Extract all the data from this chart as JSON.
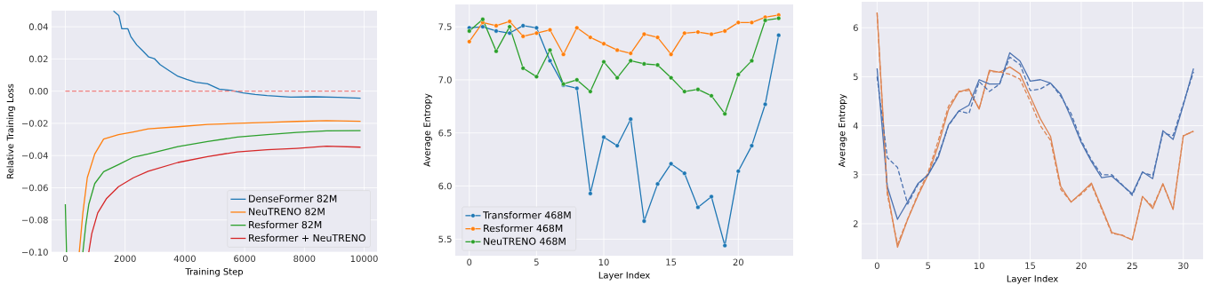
{
  "chart_data": [
    {
      "type": "line",
      "xlabel": "Training Step",
      "ylabel": "Relative Training Loss",
      "xlim": [
        -460,
        10430
      ],
      "ylim": [
        -0.1,
        0.05
      ],
      "xticks": [
        0,
        2000,
        4000,
        6000,
        8000,
        10000
      ],
      "yticks": [
        {
          "value": -0.1,
          "label": "−0.10"
        },
        {
          "value": -0.08,
          "label": "−0.08"
        },
        {
          "value": -0.06,
          "label": "−0.06"
        },
        {
          "value": -0.04,
          "label": "−0.04"
        },
        {
          "value": -0.02,
          "label": "−0.02"
        },
        {
          "value": 0,
          "label": "0.00"
        },
        {
          "value": 0.02,
          "label": "0.02"
        },
        {
          "value": 0.04,
          "label": "0.04"
        }
      ],
      "grid": true,
      "legend": "bottom right",
      "ref_lines": [
        {
          "axis": "y",
          "value": 0,
          "color": "#f08080",
          "line_style": "dashed"
        }
      ],
      "series": [
        {
          "name": "DenseFormer 82M",
          "color": "#1f77b4",
          "x": [
            1610,
            1790,
            1890,
            2090,
            2190,
            2390,
            2590,
            2790,
            2980,
            3170,
            3470,
            3770,
            4060,
            4360,
            4760,
            5150,
            5560,
            5950,
            6350,
            6750,
            7540,
            8340,
            9130,
            9880
          ],
          "values": [
            0.0498,
            0.047,
            0.0388,
            0.0388,
            0.034,
            0.0287,
            0.025,
            0.0212,
            0.0202,
            0.0165,
            0.0128,
            0.0092,
            0.0073,
            0.0055,
            0.0046,
            0.0013,
            0.0004,
            -0.0011,
            -0.002,
            -0.0027,
            -0.0037,
            -0.0035,
            -0.0038,
            -0.0044
          ]
        },
        {
          "name": "NeuTRENO 82M",
          "color": "#ff7f0e",
          "x": [
            467,
            587,
            736,
            985,
            1282,
            1780,
            2276,
            2773,
            3767,
            4761,
            5756,
            6750,
            7744,
            8738,
            9880
          ],
          "values": [
            -0.1,
            -0.0757,
            -0.0537,
            -0.039,
            -0.0298,
            -0.027,
            -0.0253,
            -0.0234,
            -0.0221,
            -0.0207,
            -0.02,
            -0.0194,
            -0.0188,
            -0.0183,
            -0.0187
          ]
        },
        {
          "name": "Resformer 82M",
          "color": "#2ca02c",
          "x": [
            0,
            40,
            300,
            587,
            686,
            786,
            985,
            1282,
            1780,
            2276,
            2773,
            3767,
            4761,
            5756,
            6750,
            7744,
            8738,
            9880
          ],
          "values": [
            -0.0702,
            -0.1,
            null,
            -0.1,
            -0.083,
            -0.0702,
            -0.0574,
            -0.05,
            -0.0456,
            -0.041,
            -0.039,
            -0.0344,
            -0.0313,
            -0.0285,
            -0.027,
            -0.0256,
            -0.0247,
            -0.0245
          ]
        },
        {
          "name": "Resformer + NeuTRENO",
          "color": "#d62728",
          "x": [
            785,
            885,
            1083,
            1382,
            1780,
            2276,
            2773,
            3767,
            4761,
            5756,
            6750,
            7744,
            8738,
            9880
          ],
          "values": [
            -0.1,
            -0.0885,
            -0.0757,
            -0.0666,
            -0.0593,
            -0.0538,
            -0.0498,
            -0.0443,
            -0.0406,
            -0.0377,
            -0.0364,
            -0.0355,
            -0.0342,
            -0.0348
          ]
        }
      ]
    },
    {
      "type": "line",
      "xlabel": "Layer Index",
      "ylabel": "Average Entropy",
      "xlim": [
        -1.04,
        24.08
      ],
      "ylim": [
        5.344,
        7.71
      ],
      "xticks": [
        0,
        5,
        10,
        15,
        20
      ],
      "yticks": [
        5.5,
        {
          "value": 6.0,
          "label": "6.0"
        },
        6.5,
        {
          "value": 7.0,
          "label": "7.0"
        },
        7.5
      ],
      "grid": true,
      "legend": "bottom left",
      "marker": "circle",
      "x": [
        0,
        1,
        2,
        3,
        4,
        5,
        6,
        7,
        8,
        9,
        10,
        11,
        12,
        13,
        14,
        15,
        16,
        17,
        18,
        19,
        20,
        21,
        22,
        23
      ],
      "series": [
        {
          "name": "Transformer 468M",
          "color": "#1f77b4",
          "values": [
            7.49,
            7.5,
            7.46,
            7.44,
            7.51,
            7.49,
            7.18,
            6.95,
            6.92,
            5.93,
            6.46,
            6.38,
            6.63,
            5.67,
            6.02,
            6.21,
            6.12,
            5.8,
            5.9,
            5.44,
            6.14,
            6.38,
            6.77,
            7.42
          ]
        },
        {
          "name": "Resformer 468M",
          "color": "#ff7f0e",
          "values": [
            7.36,
            7.54,
            7.51,
            7.55,
            7.41,
            7.44,
            7.47,
            7.24,
            7.49,
            7.4,
            7.34,
            7.28,
            7.25,
            7.43,
            7.4,
            7.24,
            7.44,
            7.45,
            7.43,
            7.46,
            7.54,
            7.54,
            7.59,
            7.61
          ]
        },
        {
          "name": "NeuTRENO 468M",
          "color": "#2ca02c",
          "values": [
            7.46,
            7.57,
            7.27,
            7.5,
            7.11,
            7.03,
            7.28,
            6.96,
            7.0,
            6.89,
            7.17,
            7.02,
            7.18,
            7.15,
            7.14,
            7.02,
            6.89,
            6.91,
            6.85,
            6.68,
            7.05,
            7.18,
            7.56,
            7.58
          ]
        }
      ]
    },
    {
      "type": "line",
      "xlabel": "Layer Index",
      "ylabel": "Average Entropy",
      "xlim": [
        -1.51,
        31.94
      ],
      "ylim": [
        1.275,
        6.53
      ],
      "xticks": [
        0,
        5,
        10,
        15,
        20,
        25,
        30
      ],
      "yticks": [
        2,
        3,
        4,
        5,
        6
      ],
      "grid": true,
      "x": [
        0,
        1,
        2,
        3,
        4,
        5,
        6,
        7,
        8,
        9,
        10,
        11,
        12,
        13,
        14,
        15,
        16,
        17,
        18,
        19,
        20,
        21,
        22,
        23,
        24,
        25,
        26,
        27,
        28,
        29,
        30,
        31
      ],
      "series": [
        {
          "color": "#dd8452",
          "line_style": "solid",
          "values": [
            6.31,
            2.69,
            1.52,
            2.09,
            2.57,
            3.0,
            3.6,
            4.33,
            4.69,
            4.75,
            4.34,
            5.13,
            5.09,
            5.2,
            5.06,
            4.6,
            4.14,
            3.78,
            2.76,
            2.44,
            2.63,
            2.83,
            2.33,
            1.82,
            1.76,
            1.67,
            2.56,
            2.31,
            2.82,
            2.29,
            3.79,
            3.89
          ]
        },
        {
          "color": "#4c72b0",
          "line_style": "solid",
          "values": [
            5.17,
            2.76,
            2.09,
            2.45,
            2.82,
            3.0,
            3.36,
            4.02,
            4.3,
            4.42,
            4.94,
            4.85,
            4.85,
            5.49,
            5.32,
            4.91,
            4.94,
            4.87,
            4.64,
            4.17,
            3.66,
            3.27,
            2.94,
            2.97,
            2.79,
            2.61,
            3.06,
            2.92,
            3.9,
            3.72,
            4.42,
            5.17
          ]
        },
        {
          "color": "#dd8452",
          "line_style": "dashed",
          "values": [
            6.31,
            2.6,
            1.58,
            2.1,
            2.6,
            3.05,
            3.7,
            4.4,
            4.7,
            4.72,
            4.35,
            5.1,
            5.1,
            5.05,
            4.95,
            4.5,
            4.0,
            3.7,
            2.7,
            2.45,
            2.6,
            2.8,
            2.3,
            1.8,
            1.77,
            1.67,
            2.55,
            2.35,
            2.8,
            2.3,
            3.8,
            3.88
          ]
        },
        {
          "color": "#4c72b0",
          "line_style": "dashed",
          "values": [
            5.0,
            3.35,
            3.15,
            2.4,
            2.8,
            3.0,
            3.4,
            4.0,
            4.3,
            4.25,
            4.9,
            4.7,
            4.85,
            5.4,
            5.25,
            4.72,
            4.75,
            4.87,
            4.6,
            4.25,
            3.7,
            3.3,
            3.0,
            3.0,
            2.8,
            2.58,
            3.05,
            2.98,
            3.85,
            3.8,
            4.45,
            5.1
          ]
        }
      ]
    }
  ]
}
